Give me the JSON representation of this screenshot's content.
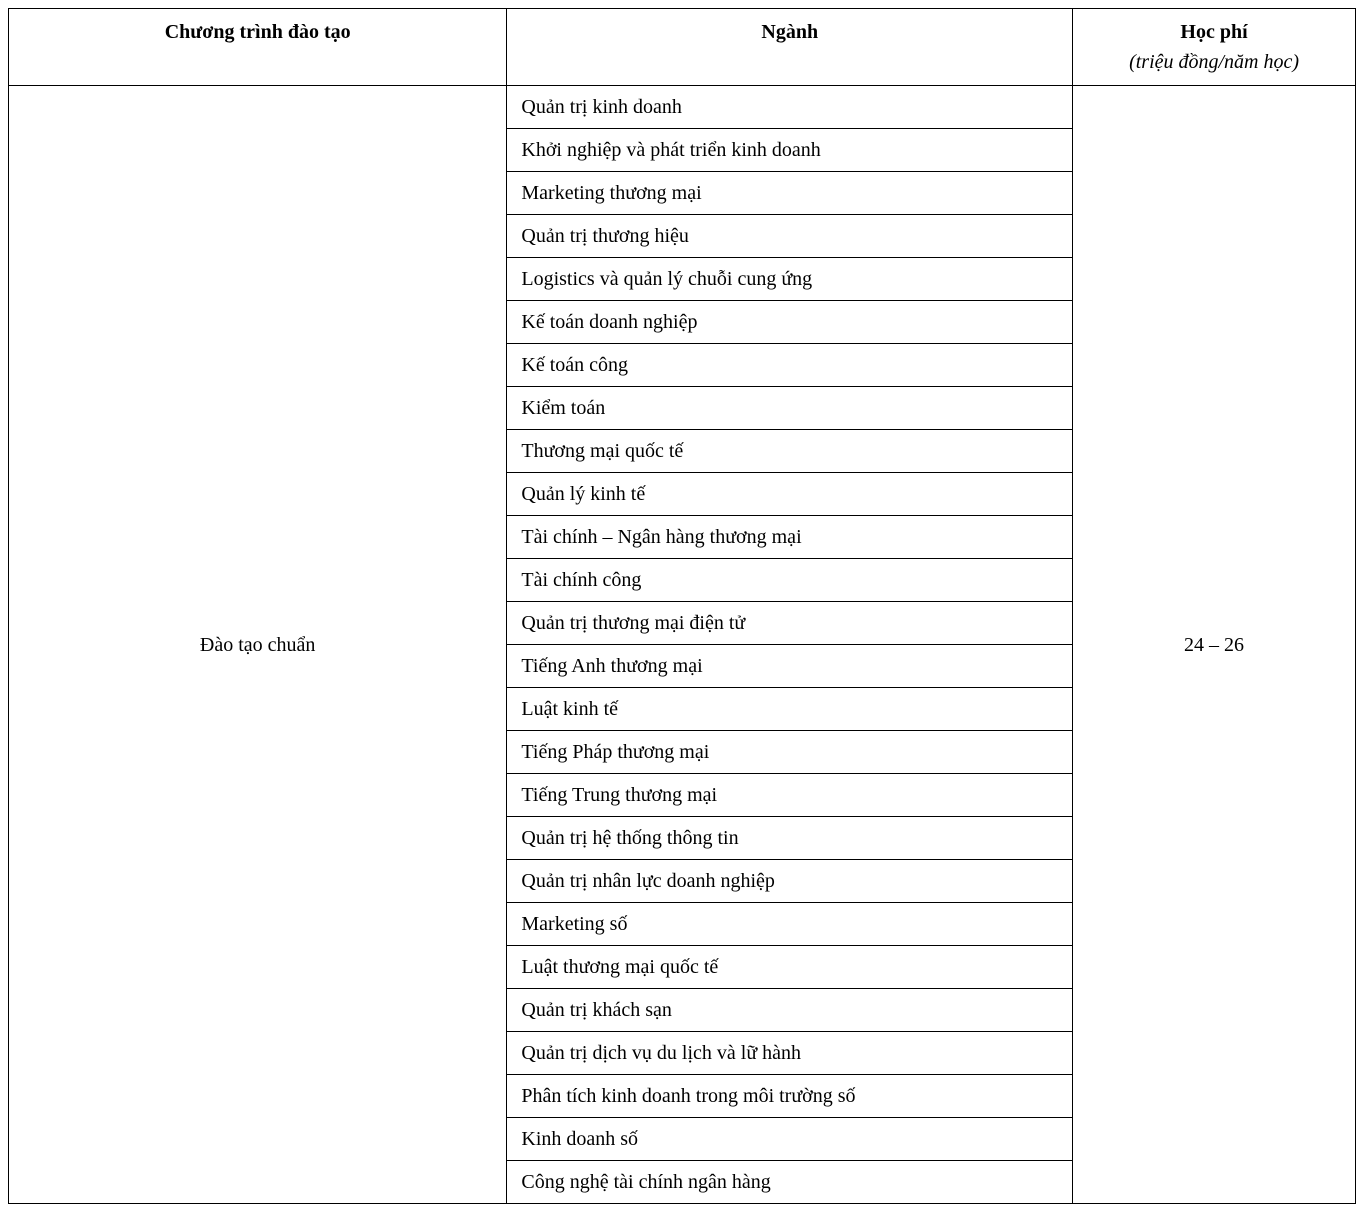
{
  "table": {
    "headers": {
      "program": "Chương trình đào tạo",
      "major": "Ngành",
      "fee": "Học phí",
      "fee_sub": "(triệu đồng/năm học)"
    },
    "program_name": "Đào tạo chuẩn",
    "fee_value": "24 – 26",
    "majors": [
      "Quản trị kinh doanh",
      "Khởi nghiệp và phát triển kinh doanh",
      "Marketing thương mại",
      "Quản trị thương hiệu",
      "Logistics và quản lý chuỗi cung ứng",
      "Kế toán doanh nghiệp",
      "Kế toán công",
      "Kiểm toán",
      "Thương mại quốc tế",
      "Quản lý kinh tế",
      "Tài chính – Ngân hàng thương mại",
      "Tài chính công",
      "Quản trị thương mại điện tử",
      "Tiếng Anh thương mại",
      "Luật kinh tế",
      "Tiếng Pháp thương mại",
      "Tiếng Trung thương mại",
      "Quản trị hệ thống thông tin",
      "Quản trị nhân lực doanh nghiệp",
      "Marketing số",
      "Luật thương mại quốc tế",
      "Quản trị khách sạn",
      "Quản trị dịch vụ du lịch và lữ hành",
      "Phân tích kinh doanh trong môi trường số",
      "Kinh doanh số",
      "Công nghệ tài chính ngân hàng"
    ]
  },
  "styling": {
    "font_family": "Times New Roman",
    "font_size_pt": 15,
    "border_color": "#000000",
    "background_color": "#ffffff",
    "text_color": "#000000",
    "col_widths": {
      "program": "37%",
      "major": "42%",
      "fee": "21%"
    }
  }
}
